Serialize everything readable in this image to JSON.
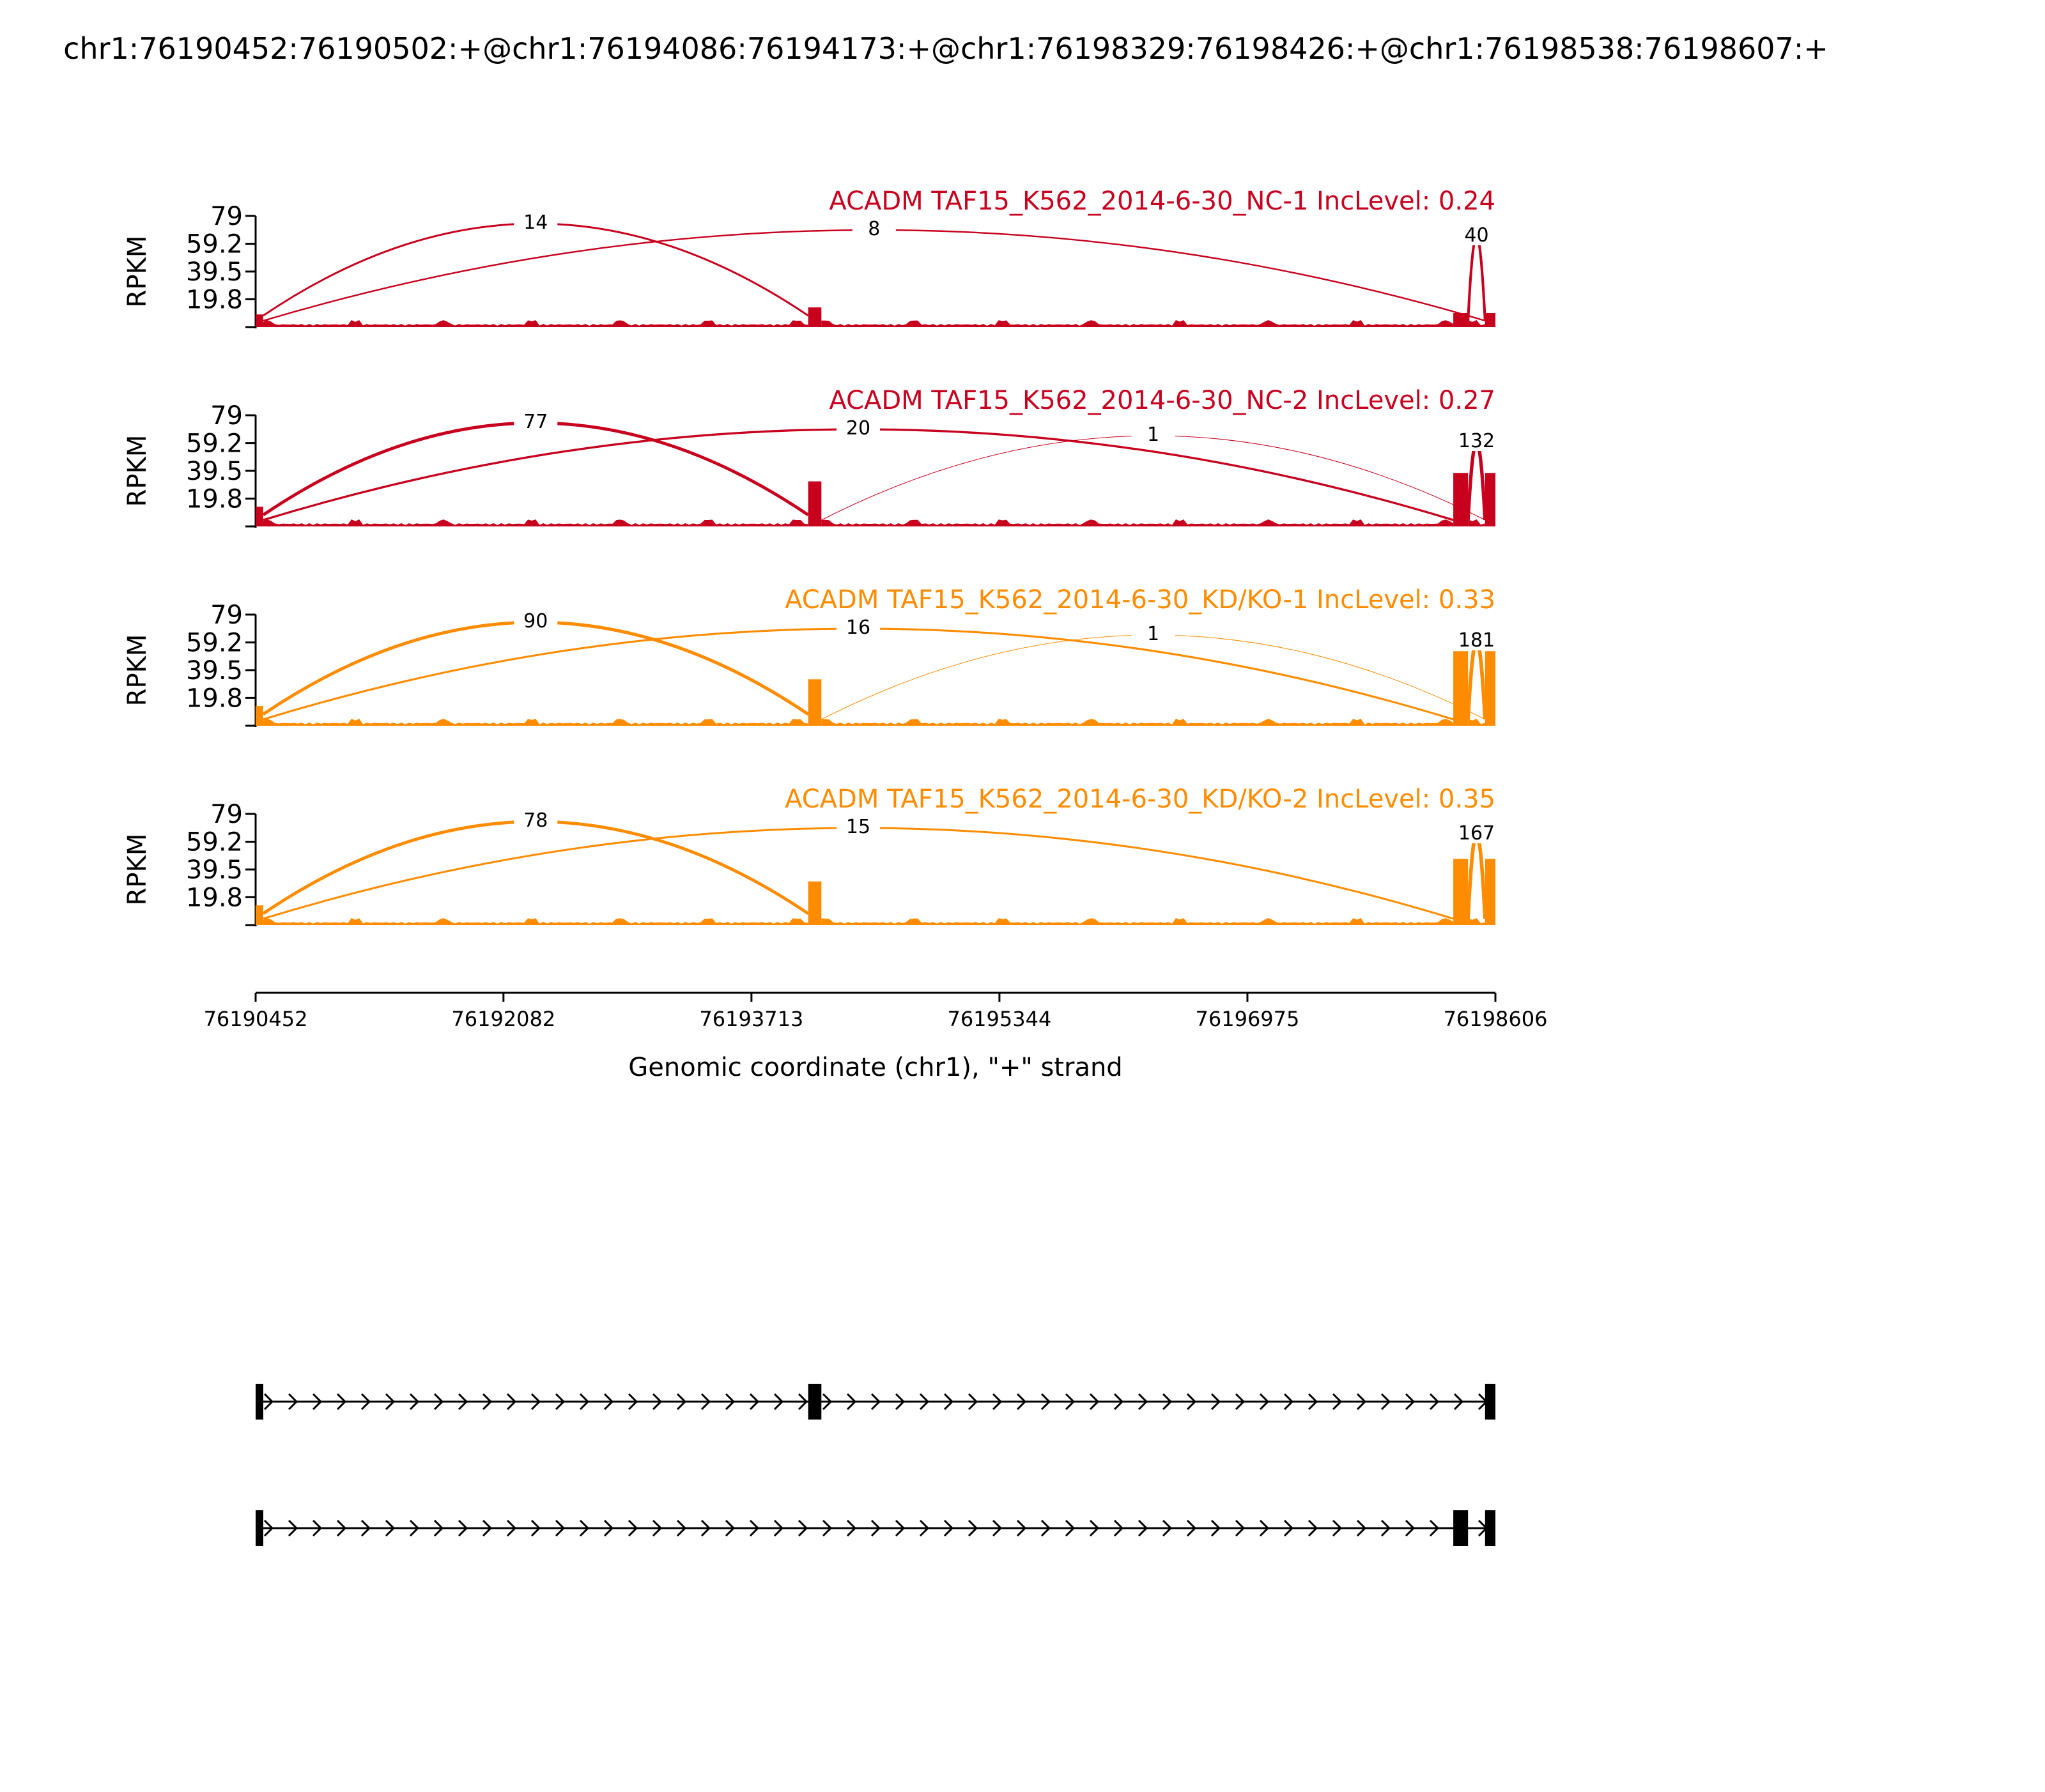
{
  "chart_data": {
    "type": "sashimi",
    "title": "chr1:76190452:76190502:+@chr1:76194086:76194173:+@chr1:76198329:76198426:+@chr1:76198538:76198607:+",
    "xlabel": "Genomic coordinate (chr1), \"+\" strand",
    "ylabel": "RPKM",
    "xlim": [
      76190452,
      76198606
    ],
    "x_ticks": [
      "76190452",
      "76192082",
      "76193713",
      "76195344",
      "76196975",
      "76198606"
    ],
    "x_tick_values": [
      76190452,
      76192082,
      76193713,
      76195344,
      76196975,
      76198606
    ],
    "ylim": [
      0,
      79
    ],
    "y_ticks": [
      "79",
      "59.2",
      "39.5",
      "19.8"
    ],
    "y_tick_values": [
      79,
      59.2,
      39.5,
      19.8
    ],
    "exons": [
      {
        "start": 76190452,
        "end": 76190502
      },
      {
        "start": 76194086,
        "end": 76194173
      },
      {
        "start": 76198329,
        "end": 76198426
      },
      {
        "start": 76198538,
        "end": 76198606
      }
    ],
    "tracks": [
      {
        "label": "ACADM TAF15_K562_2014-6-30_NC-1 IncLevel: 0.24",
        "color": "#c8001e",
        "exon_heights": [
          9,
          14,
          10,
          10
        ],
        "junctions": [
          {
            "from": 76190502,
            "to": 76194086,
            "count": "14"
          },
          {
            "from": 76190502,
            "to": 76198538,
            "count": "8"
          },
          {
            "from": 76198426,
            "to": 76198538,
            "count": "40"
          }
        ]
      },
      {
        "label": "ACADM TAF15_K562_2014-6-30_NC-2 IncLevel: 0.27",
        "color": "#c8001e",
        "exon_heights": [
          14,
          32,
          38,
          38
        ],
        "junctions": [
          {
            "from": 76190502,
            "to": 76194086,
            "count": "77"
          },
          {
            "from": 76190502,
            "to": 76198329,
            "count": "20"
          },
          {
            "from": 76194173,
            "to": 76198538,
            "count": "1"
          },
          {
            "from": 76198426,
            "to": 76198538,
            "count": "132"
          }
        ]
      },
      {
        "label": "ACADM TAF15_K562_2014-6-30_KD/KO-1 IncLevel: 0.33",
        "color": "#ff8c00",
        "exon_heights": [
          14,
          33,
          53,
          53
        ],
        "junctions": [
          {
            "from": 76190502,
            "to": 76194086,
            "count": "90"
          },
          {
            "from": 76190502,
            "to": 76198329,
            "count": "16"
          },
          {
            "from": 76194173,
            "to": 76198538,
            "count": "1"
          },
          {
            "from": 76198426,
            "to": 76198538,
            "count": "181"
          }
        ]
      },
      {
        "label": "ACADM TAF15_K562_2014-6-30_KD/KO-2 IncLevel: 0.35",
        "color": "#ff8c00",
        "exon_heights": [
          14,
          31,
          47,
          47
        ],
        "junctions": [
          {
            "from": 76190502,
            "to": 76194086,
            "count": "78"
          },
          {
            "from": 76190502,
            "to": 76198329,
            "count": "15"
          },
          {
            "from": 76198426,
            "to": 76198538,
            "count": "167"
          }
        ]
      }
    ],
    "isoforms": [
      {
        "exons": [
          0,
          1,
          3
        ]
      },
      {
        "exons": [
          0,
          2,
          3
        ]
      }
    ]
  }
}
